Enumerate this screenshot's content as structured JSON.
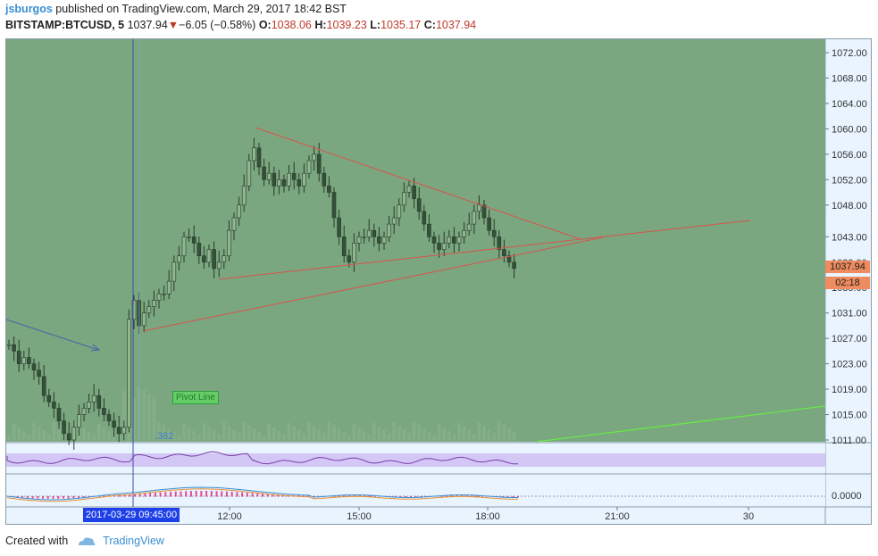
{
  "header": {
    "author": "jsburgos",
    "published_text": "published on TradingView.com, March 29, 2017 18:42 BST",
    "symbol": "BITSTAMP:BTCUSD, 5",
    "last": "1037.94",
    "change_arrow": "▼",
    "change": "−6.05 (−0.58%)",
    "open_label": "O:",
    "open": "1038.06",
    "high_label": "H:",
    "high": "1039.23",
    "low_label": "L:",
    "low": "1035.17",
    "close_label": "C:",
    "close": "1037.94"
  },
  "footer": {
    "created_with": "Created with",
    "brand": "TradingView",
    "brand_icon": "tradingview-cloud-icon"
  },
  "colors": {
    "chart_bg": "#7aa77f",
    "price_tag": "#ee8b5f",
    "trendline": "#d9534f",
    "pivot_line": "#66ee44",
    "cursor_label": "#1e40e8"
  },
  "chart_data": {
    "type": "line",
    "ylim": [
      1009,
      1075
    ],
    "y_ticks": [
      "1072.00",
      "1068.00",
      "1064.00",
      "1060.00",
      "1056.00",
      "1052.00",
      "1048.00",
      "1043.00",
      "1039.00",
      "1035.00",
      "1031.00",
      "1027.00",
      "1023.00",
      "1019.00",
      "1015.00",
      "1011.00"
    ],
    "x_ticks": [
      "12:00",
      "15:00",
      "18:00",
      "21:00",
      "30"
    ],
    "last_price_label": "1037.94",
    "countdown_label": "02:18",
    "cursor_time_label": "2017-03-29 09:45:00",
    "annotation_pivot": "Pivot Line",
    "annotation_fib": ".382",
    "indicator2_level": "0.0000",
    "series": [
      {
        "values": [
          1026,
          1025,
          1023,
          1024,
          1023,
          1022,
          1021,
          1018,
          1017,
          1016,
          1014,
          1012,
          1011,
          1013,
          1015,
          1016,
          1017,
          1018,
          1016,
          1015,
          1014,
          1013,
          1012,
          1013,
          1030,
          1033,
          1029,
          1031,
          1032,
          1033,
          1034,
          1034,
          1036,
          1039,
          1040,
          1043,
          1043,
          1042,
          1040,
          1039,
          1041,
          1038,
          1039,
          1040,
          1044,
          1046,
          1048,
          1051,
          1055,
          1057,
          1054,
          1052,
          1053,
          1051,
          1052,
          1051,
          1053,
          1052,
          1051,
          1053,
          1055,
          1056,
          1053,
          1051,
          1050,
          1046,
          1043,
          1040,
          1039,
          1042,
          1043,
          1043,
          1044,
          1043,
          1042,
          1043,
          1045,
          1046,
          1048,
          1050,
          1051,
          1049,
          1047,
          1045,
          1043,
          1042,
          1041,
          1042,
          1043,
          1042,
          1043,
          1044,
          1045,
          1047,
          1048,
          1046,
          1044,
          1043,
          1041,
          1040,
          1039,
          1038
        ]
      }
    ]
  }
}
